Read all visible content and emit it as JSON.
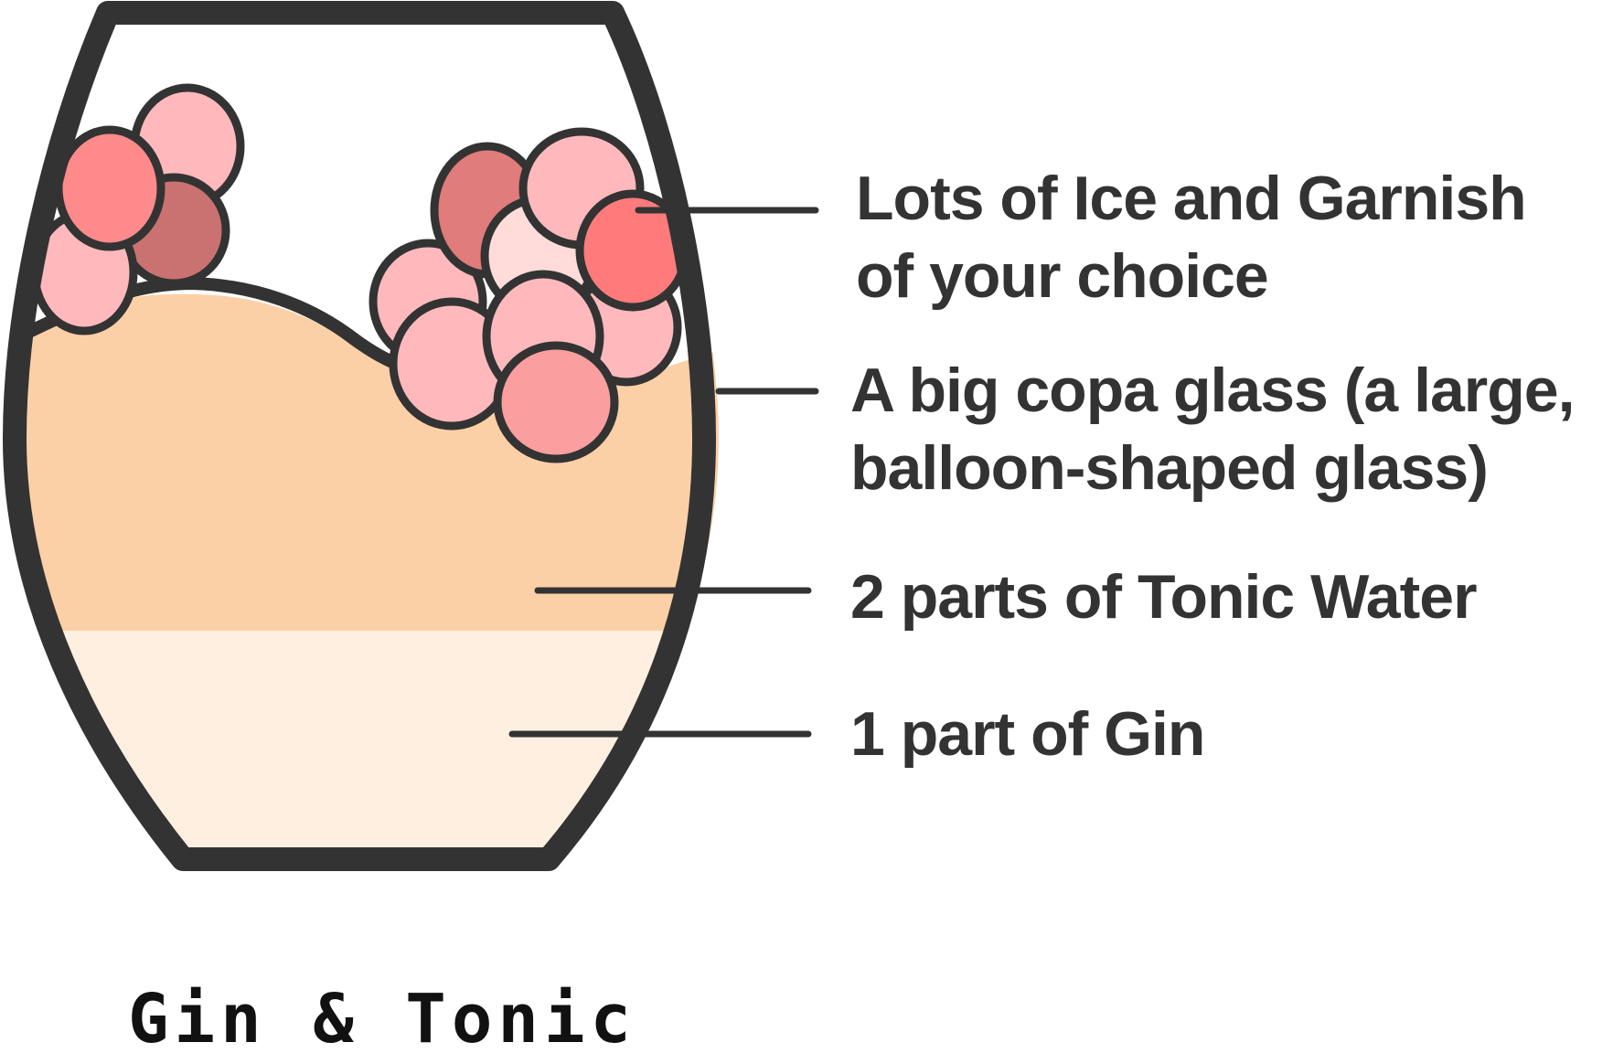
{
  "title": "Gin & Tonic",
  "colors": {
    "outline": "#333333",
    "tonic": "#fcd0a6",
    "gin": "#ffefe0",
    "ice_light": "#ffb9bd",
    "ice_mid": "#fa9e9f",
    "ice_strong": "#ff8a8c",
    "ice_bright": "#ff7b7b",
    "ice_dark": "#c97271",
    "ice_rose": "#e07c7b",
    "ice_pale": "#ffdcda"
  },
  "labels": {
    "garnish_line1": "Lots of Ice and Garnish",
    "garnish_line2": "of your choice",
    "glass_line1": "A big copa glass (a large,",
    "glass_line2": "balloon-shaped glass)",
    "tonic": "2 parts of Tonic Water",
    "gin": "1 part of Gin"
  }
}
